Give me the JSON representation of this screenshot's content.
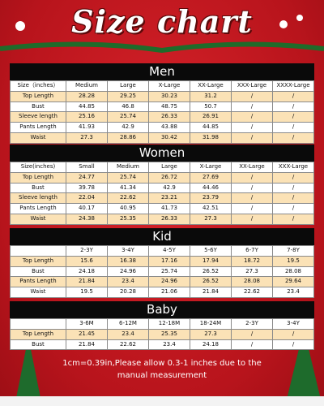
{
  "header": {
    "title": "Size chart"
  },
  "sections": [
    {
      "title": "Men",
      "columns": [
        "Size（inches）",
        "Medium",
        "Large",
        "X-Large",
        "XX-Large",
        "XXX-Large",
        "XXXX-Large"
      ],
      "rows": [
        [
          "Top Length",
          "28.28",
          "29.25",
          "30.23",
          "31.2",
          "/",
          "/"
        ],
        [
          "Bust",
          "44.85",
          "46.8",
          "48.75",
          "50.7",
          "/",
          "/"
        ],
        [
          "Sleeve length",
          "25.16",
          "25.74",
          "26.33",
          "26.91",
          "/",
          "/"
        ],
        [
          "Pants Length",
          "41.93",
          "42.9",
          "43.88",
          "44.85",
          "/",
          "/"
        ],
        [
          "Waist",
          "27.3",
          "28.86",
          "30.42",
          "31.98",
          "/",
          "/"
        ]
      ]
    },
    {
      "title": "Women",
      "columns": [
        "Size(inches)",
        "Small",
        "Medium",
        "Large",
        "X-Large",
        "XX-Large",
        "XXX-Large"
      ],
      "rows": [
        [
          "Top Length",
          "24.77",
          "25.74",
          "26.72",
          "27.69",
          "/",
          "/"
        ],
        [
          "Bust",
          "39.78",
          "41.34",
          "42.9",
          "44.46",
          "/",
          "/"
        ],
        [
          "Sleeve length",
          "22.04",
          "22.62",
          "23.21",
          "23.79",
          "/",
          "/"
        ],
        [
          "Pants Length",
          "40.17",
          "40.95",
          "41.73",
          "42.51",
          "/",
          "/"
        ],
        [
          "Waist",
          "24.38",
          "25.35",
          "26.33",
          "27.3",
          "/",
          "/"
        ]
      ]
    },
    {
      "title": "Kid",
      "columns": [
        null,
        "2-3Y",
        "3-4Y",
        "4-5Y",
        "5-6Y",
        "6-7Y",
        "7-8Y"
      ],
      "rows": [
        [
          "Top Length",
          "15.6",
          "16.38",
          "17.16",
          "17.94",
          "18.72",
          "19.5"
        ],
        [
          "Bust",
          "24.18",
          "24.96",
          "25.74",
          "26.52",
          "27.3",
          "28.08"
        ],
        [
          "Pants Length",
          "21.84",
          "23.4",
          "24.96",
          "26.52",
          "28.08",
          "29.64"
        ],
        [
          "Waist",
          "19.5",
          "20.28",
          "21.06",
          "21.84",
          "22.62",
          "23.4"
        ]
      ]
    },
    {
      "title": "Baby",
      "columns": [
        null,
        "3-6M",
        "6-12M",
        "12-18M",
        "18-24M",
        "2-3Y",
        "3-4Y"
      ],
      "rows": [
        [
          "Top Length",
          "21.45",
          "23.4",
          "25.35",
          "27.3",
          "/",
          "/"
        ],
        [
          "Bust",
          "21.84",
          "22.62",
          "23.4",
          "24.18",
          "/",
          "/"
        ]
      ]
    }
  ],
  "footnote": "1cm=0.39in,Please allow 0.3-1 inches due to the manual measurement"
}
